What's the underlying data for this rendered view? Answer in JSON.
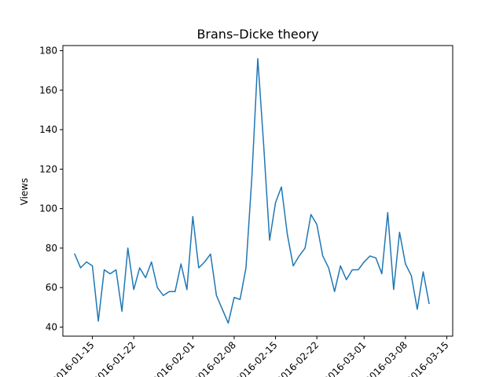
{
  "chart_data": {
    "type": "line",
    "title": "Brans–Dicke theory",
    "xlabel": "",
    "ylabel": "Views",
    "line_color": "#1f77b4",
    "x_ticks": [
      "2016-01-15",
      "2016-01-22",
      "2016-02-01",
      "2016-02-08",
      "2016-02-15",
      "2016-02-22",
      "2016-03-01",
      "2016-03-08",
      "2016-03-15"
    ],
    "x_range": [
      "2016-01-10",
      "2016-03-16"
    ],
    "ylim": [
      35.4,
      182.6
    ],
    "y_ticks": [
      40,
      60,
      80,
      100,
      120,
      140,
      160,
      180
    ],
    "grid": false,
    "series": [
      {
        "name": "",
        "x": [
          "2016-01-12",
          "2016-01-13",
          "2016-01-14",
          "2016-01-15",
          "2016-01-16",
          "2016-01-17",
          "2016-01-18",
          "2016-01-19",
          "2016-01-20",
          "2016-01-21",
          "2016-01-22",
          "2016-01-23",
          "2016-01-24",
          "2016-01-25",
          "2016-01-26",
          "2016-01-27",
          "2016-01-28",
          "2016-01-29",
          "2016-01-30",
          "2016-01-31",
          "2016-02-01",
          "2016-02-02",
          "2016-02-03",
          "2016-02-04",
          "2016-02-05",
          "2016-02-06",
          "2016-02-07",
          "2016-02-08",
          "2016-02-09",
          "2016-02-10",
          "2016-02-11",
          "2016-02-12",
          "2016-02-13",
          "2016-02-14",
          "2016-02-15",
          "2016-02-16",
          "2016-02-17",
          "2016-02-18",
          "2016-02-19",
          "2016-02-20",
          "2016-02-21",
          "2016-02-22",
          "2016-02-23",
          "2016-02-24",
          "2016-02-25",
          "2016-02-26",
          "2016-02-27",
          "2016-02-28",
          "2016-02-29",
          "2016-03-01",
          "2016-03-02",
          "2016-03-03",
          "2016-03-04",
          "2016-03-05",
          "2016-03-06",
          "2016-03-07",
          "2016-03-08",
          "2016-03-09",
          "2016-03-10",
          "2016-03-11",
          "2016-03-12"
        ],
        "values": [
          77,
          70,
          73,
          71,
          43,
          69,
          67,
          69,
          48,
          80,
          59,
          70,
          65,
          73,
          60,
          56,
          58,
          58,
          72,
          59,
          96,
          70,
          73,
          77,
          56,
          49,
          42,
          55,
          54,
          70,
          116,
          176,
          132,
          84,
          103,
          111,
          87,
          71,
          76,
          80,
          97,
          92,
          76,
          70,
          58,
          71,
          64,
          69,
          69,
          73,
          76,
          75,
          67,
          98,
          59,
          88,
          72,
          66,
          49,
          68,
          52
        ]
      }
    ]
  }
}
